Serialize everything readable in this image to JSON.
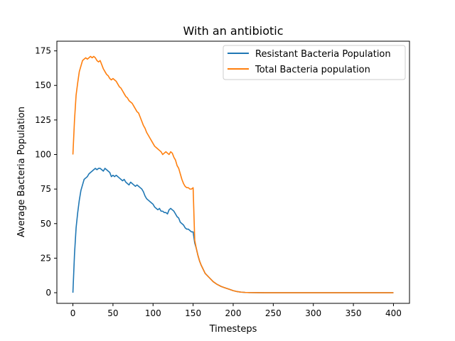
{
  "chart_data": {
    "type": "line",
    "title": "With an antibiotic",
    "xlabel": "Timesteps",
    "ylabel": "Average Bacteria Population",
    "xlim": [
      -20,
      420
    ],
    "ylim": [
      -7.7,
      182
    ],
    "xticks": [
      0,
      50,
      100,
      150,
      200,
      250,
      300,
      350,
      400
    ],
    "yticks": [
      0,
      25,
      50,
      75,
      100,
      125,
      150,
      175
    ],
    "grid": false,
    "legend_position": "top-right",
    "series": [
      {
        "name": "Resistant Bacteria Population",
        "color": "#1f77b4",
        "x": [
          0,
          2,
          4,
          6,
          8,
          10,
          12,
          14,
          16,
          18,
          20,
          22,
          24,
          26,
          28,
          30,
          32,
          34,
          36,
          38,
          40,
          42,
          44,
          46,
          48,
          50,
          52,
          54,
          56,
          58,
          60,
          62,
          64,
          66,
          68,
          70,
          72,
          74,
          76,
          78,
          80,
          82,
          84,
          86,
          88,
          90,
          92,
          94,
          96,
          98,
          100,
          102,
          104,
          106,
          108,
          110,
          112,
          114,
          116,
          118,
          120,
          122,
          124,
          126,
          128,
          130,
          132,
          134,
          136,
          138,
          140,
          142,
          144,
          146,
          148,
          150,
          152,
          154,
          156,
          158,
          160,
          165,
          170,
          175,
          180,
          185,
          190,
          195,
          200,
          205,
          210,
          215,
          220,
          230,
          240,
          250,
          260,
          280,
          300,
          350,
          400
        ],
        "y": [
          0,
          28,
          47,
          58,
          67,
          74,
          78,
          82,
          83,
          84,
          86,
          87,
          88,
          89,
          90,
          89,
          90,
          90,
          89,
          88,
          90,
          89,
          88,
          87,
          84,
          85,
          84,
          85,
          84,
          83,
          82,
          81,
          82,
          80,
          79,
          78,
          80,
          79,
          78,
          77,
          78,
          77,
          76,
          75,
          73,
          70,
          68,
          67,
          66,
          65,
          64,
          62,
          61,
          60,
          61,
          59,
          59,
          58,
          58,
          57,
          60,
          61,
          60,
          59,
          57,
          55,
          54,
          51,
          50,
          49,
          47,
          46,
          46,
          45,
          44,
          44,
          36,
          32,
          27,
          23,
          20,
          14,
          11,
          8,
          6,
          4.5,
          3.5,
          2.5,
          1.5,
          0.8,
          0.4,
          0.2,
          0.1,
          0.05,
          0,
          0,
          0,
          0,
          0,
          0,
          0
        ]
      },
      {
        "name": "Total Bacteria population",
        "color": "#ff7f0e",
        "x": [
          0,
          2,
          4,
          6,
          8,
          10,
          12,
          14,
          16,
          18,
          20,
          22,
          24,
          26,
          28,
          30,
          32,
          34,
          36,
          38,
          40,
          42,
          44,
          46,
          48,
          50,
          52,
          54,
          56,
          58,
          60,
          62,
          64,
          66,
          68,
          70,
          72,
          74,
          76,
          78,
          80,
          82,
          84,
          86,
          88,
          90,
          92,
          94,
          96,
          98,
          100,
          102,
          104,
          106,
          108,
          110,
          112,
          114,
          116,
          118,
          120,
          122,
          124,
          126,
          128,
          130,
          132,
          134,
          136,
          138,
          140,
          142,
          144,
          146,
          148,
          150,
          152,
          154,
          156,
          158,
          160,
          165,
          170,
          175,
          180,
          185,
          190,
          195,
          200,
          205,
          210,
          215,
          220,
          230,
          240,
          250,
          260,
          280,
          300,
          350,
          400
        ],
        "y": [
          100,
          125,
          143,
          152,
          160,
          164,
          168,
          169,
          170,
          169,
          170,
          171,
          170,
          171,
          170,
          168,
          167,
          168,
          165,
          162,
          160,
          158,
          157,
          155,
          154,
          155,
          154,
          153,
          151,
          149,
          148,
          146,
          144,
          142,
          141,
          139,
          138,
          137,
          135,
          133,
          131,
          130,
          127,
          124,
          121,
          119,
          116,
          114,
          112,
          110,
          108,
          106,
          105,
          104,
          103,
          102,
          100,
          101,
          102,
          101,
          100,
          102,
          101,
          98,
          96,
          92,
          90,
          86,
          82,
          79,
          77,
          76,
          76,
          75,
          75,
          76,
          38,
          32,
          27,
          23,
          20,
          14,
          11,
          8,
          6,
          4.5,
          3.5,
          2.5,
          1.5,
          0.8,
          0.4,
          0.2,
          0.1,
          0.05,
          0,
          0,
          0,
          0,
          0,
          0,
          0
        ]
      }
    ]
  }
}
